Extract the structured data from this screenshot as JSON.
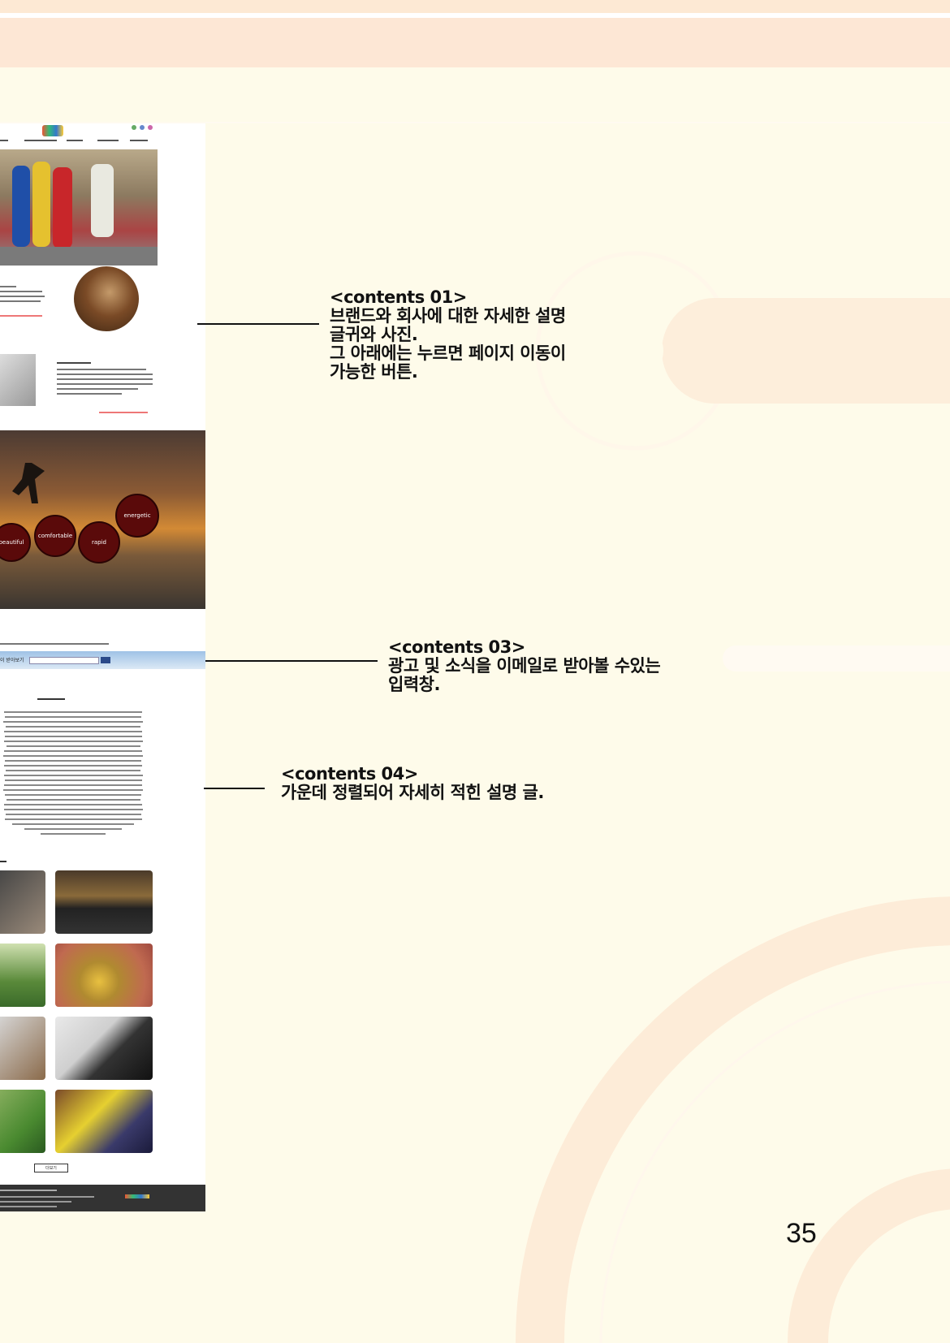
{
  "annotations": {
    "contents01": {
      "title": "<contents 01>",
      "lines": [
        "브랜드와 회사에 대한 자세한 설명",
        "글귀와 사진.",
        "그 아래에는 누르면 페이지 이동이",
        "가능한 버튼."
      ]
    },
    "contents03": {
      "title": "<contents 03>",
      "lines": [
        "광고 및 소식을 이메일로 받아볼 수있는",
        "입력창."
      ]
    },
    "contents04": {
      "title": "<contents 04>",
      "lines": [
        "가운데 정렬되어 자세히 적힌 설명 글."
      ]
    }
  },
  "mockup": {
    "circles": [
      "energetic",
      "beautiful",
      "comfortable",
      "rapid"
    ],
    "subscribe_label": "이 받아보기",
    "more_button": "더보기"
  },
  "page_number": "35",
  "colors": {
    "background": "#fefbea",
    "band": "#fde7d5",
    "deco": "#fdeedb",
    "footer": "#333333"
  }
}
